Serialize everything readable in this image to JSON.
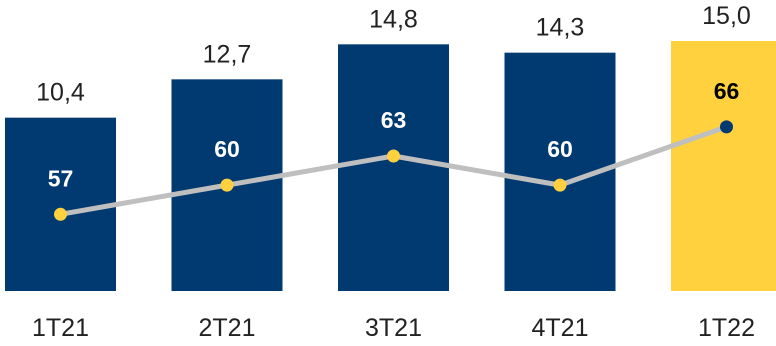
{
  "chart_data": {
    "type": "bar",
    "categories": [
      "1T21",
      "2T21",
      "3T21",
      "4T21",
      "1T22"
    ],
    "series": [
      {
        "type": "bar",
        "values": [
          10.4,
          12.7,
          14.8,
          14.3,
          15.0
        ],
        "labels": [
          "10,4",
          "12,7",
          "14,8",
          "14,3",
          "15,0"
        ],
        "colors": [
          "#003A70",
          "#003A70",
          "#003A70",
          "#003A70",
          "#FFD13F"
        ]
      },
      {
        "type": "line",
        "values": [
          57,
          60,
          63,
          60,
          66
        ],
        "labels": [
          "57",
          "60",
          "63",
          "60",
          "66"
        ],
        "line_color": "#BFBFBF",
        "marker_colors": [
          "#FFD13F",
          "#FFD13F",
          "#FFD13F",
          "#FFD13F",
          "#003A70"
        ],
        "label_colors": [
          "#FFFFFF",
          "#FFFFFF",
          "#FFFFFF",
          "#FFFFFF",
          "#000000"
        ]
      }
    ],
    "title": "",
    "xlabel": "",
    "ylabel": "",
    "ylim": [
      0,
      15.6
    ],
    "line_ylim": [
      45.5,
      70
    ],
    "grid": false,
    "legend": "none"
  }
}
